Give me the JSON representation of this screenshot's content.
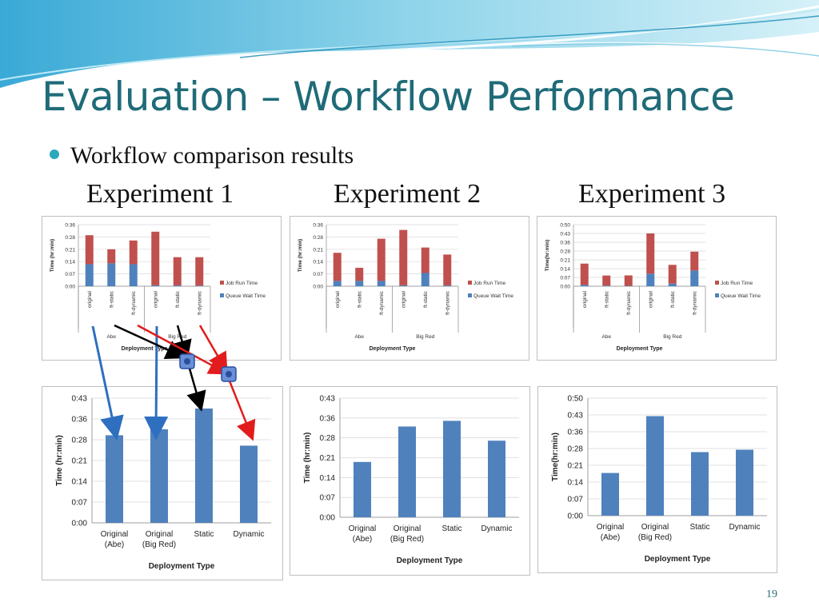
{
  "slide": {
    "title": "Evaluation – Workflow Performance",
    "bullet": "Workflow comparison results",
    "page_number": "19",
    "experiments": [
      "Experiment 1",
      "Experiment 2",
      "Experiment 3"
    ]
  },
  "colors": {
    "job_run": "#c0504d",
    "queue_wait": "#4f81bd",
    "bar": "#4f81bd",
    "title": "#1f6b78",
    "arrow_blue": "#2e6fc0",
    "arrow_black": "#000000",
    "arrow_red": "#e21c1c"
  },
  "chart_data": [
    {
      "id": "top1",
      "type": "bar",
      "stacked": true,
      "categories": [
        "original",
        "ft-static",
        "ft-dynamic",
        "original",
        "ft-static",
        "ft-dynamic"
      ],
      "groups": [
        "Abe",
        "Big Red"
      ],
      "y_ticks": [
        "0:00",
        "0:07",
        "0:14",
        "0:21",
        "0:28",
        "0:36"
      ],
      "ylim_minutes": [
        0,
        35
      ],
      "ylabel": "Time (hr:min)",
      "xlabel": "Deployment Type",
      "series": [
        {
          "name": "Queue Wait Time",
          "values_minutes": [
            12.5,
            13,
            12.5,
            0.5,
            0.5,
            0.3
          ]
        },
        {
          "name": "Job Run Time",
          "values_minutes": [
            16.5,
            8,
            13.5,
            30.5,
            16,
            16.2
          ]
        }
      ],
      "legend": "right"
    },
    {
      "id": "top2",
      "type": "bar",
      "stacked": true,
      "categories": [
        "original",
        "ft-static",
        "ft-dynamic",
        "original",
        "ft-static",
        "ft-dynamic"
      ],
      "groups": [
        "Abe",
        "Big Red"
      ],
      "y_ticks": [
        "0:00",
        "0:07",
        "0:14",
        "0:21",
        "0:28",
        "0:36"
      ],
      "ylim_minutes": [
        0,
        35
      ],
      "ylabel": "Time (hr:min)",
      "xlabel": "Deployment Type",
      "series": [
        {
          "name": "Queue Wait Time",
          "values_minutes": [
            3,
            3,
            3,
            0.5,
            7.5,
            0.5
          ]
        },
        {
          "name": "Job Run Time",
          "values_minutes": [
            16,
            7.5,
            24,
            31.5,
            14.5,
            17.5
          ]
        }
      ],
      "legend": "right"
    },
    {
      "id": "top3",
      "type": "bar",
      "stacked": true,
      "categories": [
        "original",
        "ft-static",
        "ft-dynamic",
        "original",
        "ft-static",
        "ft-dynamic"
      ],
      "groups": [
        "Abe",
        "Big Red"
      ],
      "y_ticks": [
        "0:00",
        "0:07",
        "0:14",
        "0:21",
        "0:28",
        "0:36",
        "0:43",
        "0:50"
      ],
      "ylim_minutes": [
        0,
        49
      ],
      "ylabel": "Time(hr:min)",
      "xlabel": "Deployment Type",
      "series": [
        {
          "name": "Queue Wait Time",
          "values_minutes": [
            1,
            0.5,
            0.3,
            10,
            2,
            12.5
          ]
        },
        {
          "name": "Job Run Time",
          "values_minutes": [
            17,
            8,
            8.3,
            32,
            15,
            15
          ]
        }
      ],
      "legend": "right"
    },
    {
      "id": "bottom1",
      "type": "bar",
      "categories": [
        [
          "Original",
          "(Abe)"
        ],
        [
          "Original",
          "(Big Red)"
        ],
        [
          "Static"
        ],
        [
          "Dynamic"
        ]
      ],
      "y_ticks": [
        "0:00",
        "0:07",
        "0:14",
        "0:21",
        "0:28",
        "0:36",
        "0:43"
      ],
      "ylim_minutes": [
        0,
        42
      ],
      "ylabel": "Time (hr:min)",
      "xlabel": "Deployment Type",
      "values_minutes": [
        29.5,
        31.5,
        38.5,
        26
      ]
    },
    {
      "id": "bottom2",
      "type": "bar",
      "categories": [
        [
          "Original",
          "(Abe)"
        ],
        [
          "Original",
          "(Big Red)"
        ],
        [
          "Static"
        ],
        [
          "Dynamic"
        ]
      ],
      "y_ticks": [
        "0:00",
        "0:07",
        "0:14",
        "0:21",
        "0:28",
        "0:36",
        "0:43"
      ],
      "ylim_minutes": [
        0,
        42
      ],
      "ylabel": "Time (hr:min)",
      "xlabel": "Deployment Type",
      "values_minutes": [
        19.5,
        32,
        34,
        27
      ]
    },
    {
      "id": "bottom3",
      "type": "bar",
      "categories": [
        [
          "Original",
          "(Abe)"
        ],
        [
          "Original",
          "(Big Red)"
        ],
        [
          "Static"
        ],
        [
          "Dynamic"
        ]
      ],
      "y_ticks": [
        "0:00",
        "0:07",
        "0:14",
        "0:21",
        "0:28",
        "0:36",
        "0:43",
        "0:50"
      ],
      "ylim_minutes": [
        0,
        49
      ],
      "ylabel": "Time(hr:min)",
      "xlabel": "Deployment Type",
      "values_minutes": [
        17.8,
        41.5,
        26.5,
        27.5
      ]
    }
  ]
}
